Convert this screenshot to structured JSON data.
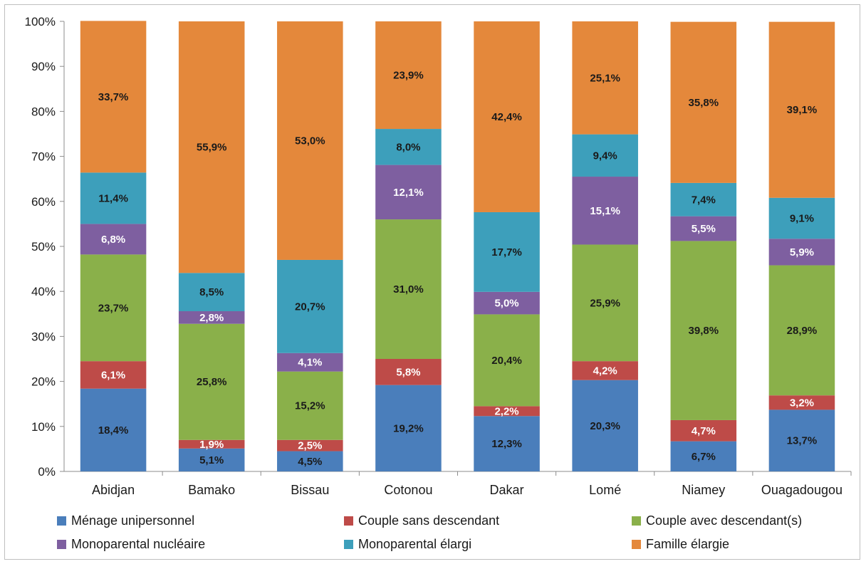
{
  "chart_data": {
    "type": "bar",
    "stacked": true,
    "normalized": true,
    "categories": [
      "Abidjan",
      "Bamako",
      "Bissau",
      "Cotonou",
      "Dakar",
      "Lomé",
      "Niamey",
      "Ouagadougou"
    ],
    "y_ticks": [
      "0%",
      "10%",
      "20%",
      "30%",
      "40%",
      "50%",
      "60%",
      "70%",
      "80%",
      "90%",
      "100%"
    ],
    "ylim": [
      0,
      100
    ],
    "grid": false,
    "legend_position": "bottom",
    "series": [
      {
        "name": "Ménage unipersonnel",
        "color": "#4a7ebb",
        "label_color": "#1a1a1a",
        "values": [
          18.4,
          5.1,
          4.5,
          19.2,
          12.3,
          20.3,
          6.7,
          13.7
        ],
        "labels": [
          "18,4%",
          "5,1%",
          "4,5%",
          "19,2%",
          "12,3%",
          "20,3%",
          "6,7%",
          "13,7%"
        ]
      },
      {
        "name": "Couple sans descendant",
        "color": "#be4b48",
        "label_color": "#ffffff",
        "values": [
          6.1,
          1.9,
          2.5,
          5.8,
          2.2,
          4.2,
          4.7,
          3.2
        ],
        "labels": [
          "6,1%",
          "1,9%",
          "2,5%",
          "5,8%",
          "2,2%",
          "4,2%",
          "4,7%",
          "3,2%"
        ]
      },
      {
        "name": "Couple avec descendant(s)",
        "color": "#8ab04a",
        "label_color": "#1a1a1a",
        "values": [
          23.7,
          25.8,
          15.2,
          31.0,
          20.4,
          25.9,
          39.8,
          28.9
        ],
        "labels": [
          "23,7%",
          "25,8%",
          "15,2%",
          "31,0%",
          "20,4%",
          "25,9%",
          "39,8%",
          "28,9%"
        ]
      },
      {
        "name": "Monoparental nucléaire",
        "color": "#7e5fa0",
        "label_color": "#ffffff",
        "values": [
          6.8,
          2.8,
          4.1,
          12.1,
          5.0,
          15.1,
          5.5,
          5.9
        ],
        "labels": [
          "6,8%",
          "2,8%",
          "4,1%",
          "12,1%",
          "5,0%",
          "15,1%",
          "5,5%",
          "5,9%"
        ]
      },
      {
        "name": "Monoparental élargi",
        "color": "#3d9fbb",
        "label_color": "#1a1a1a",
        "values": [
          11.4,
          8.5,
          20.7,
          8.0,
          17.7,
          9.4,
          7.4,
          9.1
        ],
        "labels": [
          "11,4%",
          "8,5%",
          "20,7%",
          "8,0%",
          "17,7%",
          "9,4%",
          "7,4%",
          "9,1%"
        ]
      },
      {
        "name": "Famille élargie",
        "color": "#e4883b",
        "label_color": "#1a1a1a",
        "values": [
          33.7,
          55.9,
          53.0,
          23.9,
          42.4,
          25.1,
          35.8,
          39.1
        ],
        "labels": [
          "33,7%",
          "55,9%",
          "53,0%",
          "23,9%",
          "42,4%",
          "25,1%",
          "35,8%",
          "39,1%"
        ]
      }
    ]
  }
}
